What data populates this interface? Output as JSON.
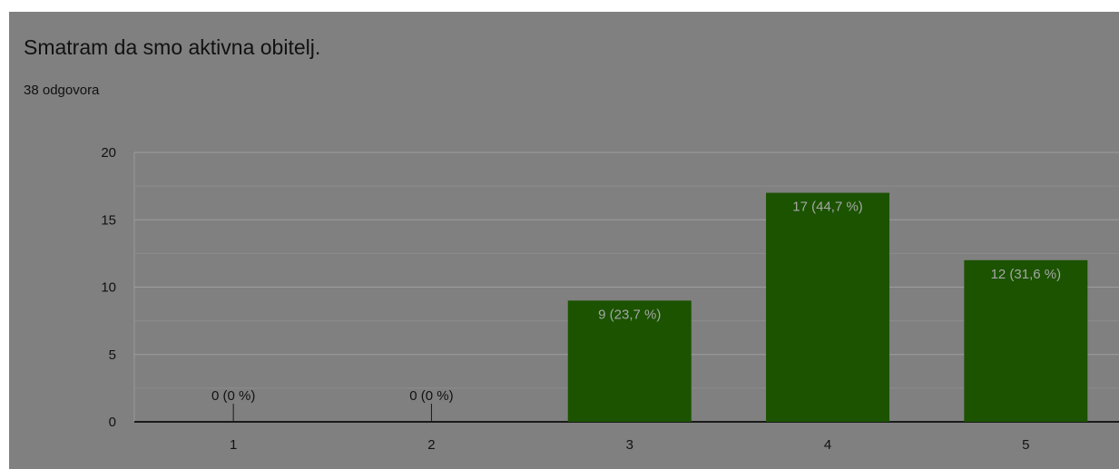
{
  "form": {
    "question": "Smatram da smo aktivna obitelj.",
    "responses": "38 odgovora"
  },
  "colors": {
    "bar": "#1b5300",
    "panel": "#808080",
    "inside_label": "#a6a6a6",
    "outside_label": "#111111"
  },
  "chart_data": {
    "type": "bar",
    "categories": [
      "1",
      "2",
      "3",
      "4",
      "5"
    ],
    "values": [
      0,
      0,
      9,
      17,
      12
    ],
    "data_labels": [
      "0 (0 %)",
      "0 (0 %)",
      "9 (23,7 %)",
      "17 (44,7 %)",
      "12 (31,6 %)"
    ],
    "ylim": [
      0,
      20
    ],
    "yticks": [
      0,
      5,
      10,
      15,
      20
    ],
    "ytick_labels": [
      "0",
      "5",
      "10",
      "15",
      "20"
    ],
    "grid": true,
    "legend": "none"
  }
}
